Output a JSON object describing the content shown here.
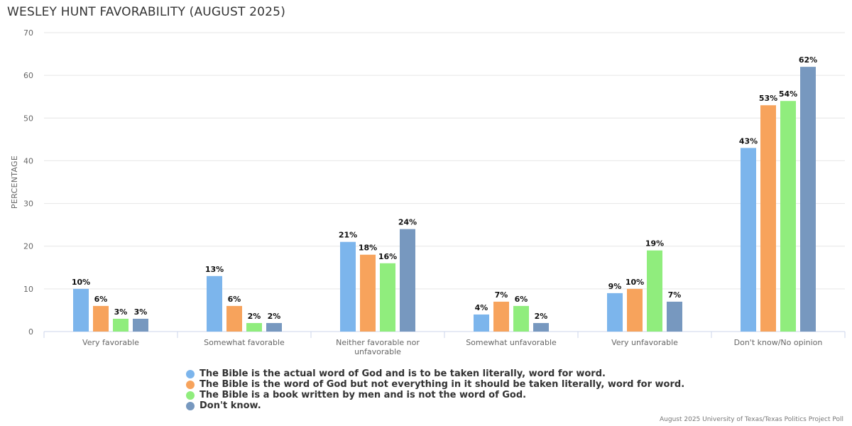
{
  "chart_data": {
    "type": "bar",
    "title": "WESLEY HUNT FAVORABILITY (AUGUST 2025)",
    "ylabel": "PERCENTAGE",
    "xlabel": "",
    "ylim": [
      0,
      70
    ],
    "yticks": [
      0,
      10,
      20,
      30,
      40,
      50,
      60,
      70
    ],
    "grid": true,
    "legend_position": "bottom",
    "categories": [
      "Very favorable",
      "Somewhat favorable",
      "Neither favorable nor unfavorable",
      "Somewhat unfavorable",
      "Very unfavorable",
      "Don't know/No opinion"
    ],
    "category_lines": [
      [
        "Very favorable"
      ],
      [
        "Somewhat favorable"
      ],
      [
        "Neither favorable nor",
        "unfavorable"
      ],
      [
        "Somewhat unfavorable"
      ],
      [
        "Very unfavorable"
      ],
      [
        "Don't know/No opinion"
      ]
    ],
    "series": [
      {
        "name": "The Bible is the actual word of God and is to be taken literally, word for word.",
        "color": "#7cb5ec",
        "values": [
          10,
          13,
          21,
          4,
          9,
          43
        ],
        "labels": [
          "10%",
          "13%",
          "21%",
          "4%",
          "9%",
          "43%"
        ]
      },
      {
        "name": "The Bible is the word of God but not everything in it should be taken literally, word for word.",
        "color": "#f7a35c",
        "values": [
          6,
          6,
          18,
          7,
          10,
          53
        ],
        "labels": [
          "6%",
          "6%",
          "18%",
          "7%",
          "10%",
          "53%"
        ]
      },
      {
        "name": "The Bible is a book written by men and is not the word of God.",
        "color": "#90ed7d",
        "values": [
          3,
          2,
          16,
          6,
          19,
          54
        ],
        "labels": [
          "3%",
          "2%",
          "16%",
          "6%",
          "19%",
          "54%"
        ]
      },
      {
        "name": "Don't know.",
        "color": "#7798bf",
        "values": [
          3,
          2,
          24,
          2,
          7,
          62
        ],
        "labels": [
          "3%",
          "2%",
          "24%",
          "2%",
          "7%",
          "62%"
        ]
      }
    ]
  },
  "credit": "August 2025 University of Texas/Texas Politics Project Poll"
}
